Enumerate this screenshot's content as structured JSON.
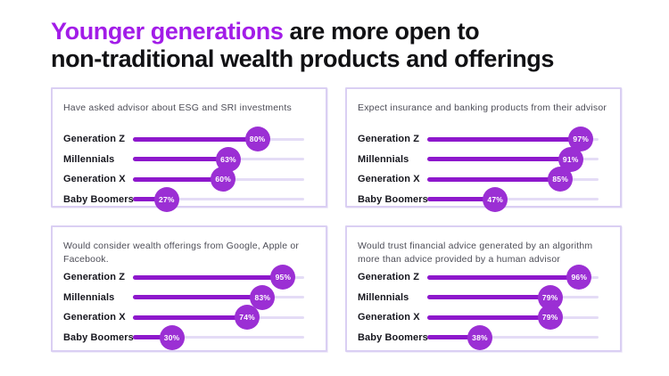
{
  "title": {
    "highlight": "Younger generations",
    "rest_line1": " are more open to",
    "line2": "non-traditional wealth products and offerings"
  },
  "colors": {
    "title_highlight": "#A21CE8",
    "title_text": "#111114",
    "dot_fill": "#9B2FD4",
    "bar_line": "#8D18CC",
    "track": "#E4DCF6",
    "panel_border": "#DACFF3",
    "panel_header_text": "#4D4D57",
    "row_label_text": "#16161E",
    "dot_value_text": "#FFFFFF",
    "background": "#FFFFFF"
  },
  "chart_data": {
    "type": "bar",
    "variant": "lollipop-horizontal",
    "unit": "%",
    "xlim": [
      0,
      100
    ],
    "grid": false,
    "legend": false,
    "categories": [
      "Generation Z",
      "Millennials",
      "Generation X",
      "Baby Boomers"
    ],
    "panels": [
      {
        "title": "Have asked advisor about ESG and SRI investments",
        "values": [
          80,
          63,
          60,
          27
        ]
      },
      {
        "title": "Expect insurance and banking products from their advisor",
        "values": [
          97,
          91,
          85,
          47
        ]
      },
      {
        "title": "Would consider wealth offerings from Google, Apple or Facebook.",
        "values": [
          95,
          83,
          74,
          30
        ]
      },
      {
        "title": "Would trust financial advice generated by an algorithm more than advice provided by a human advisor",
        "values": [
          96,
          79,
          79,
          38
        ]
      }
    ]
  }
}
